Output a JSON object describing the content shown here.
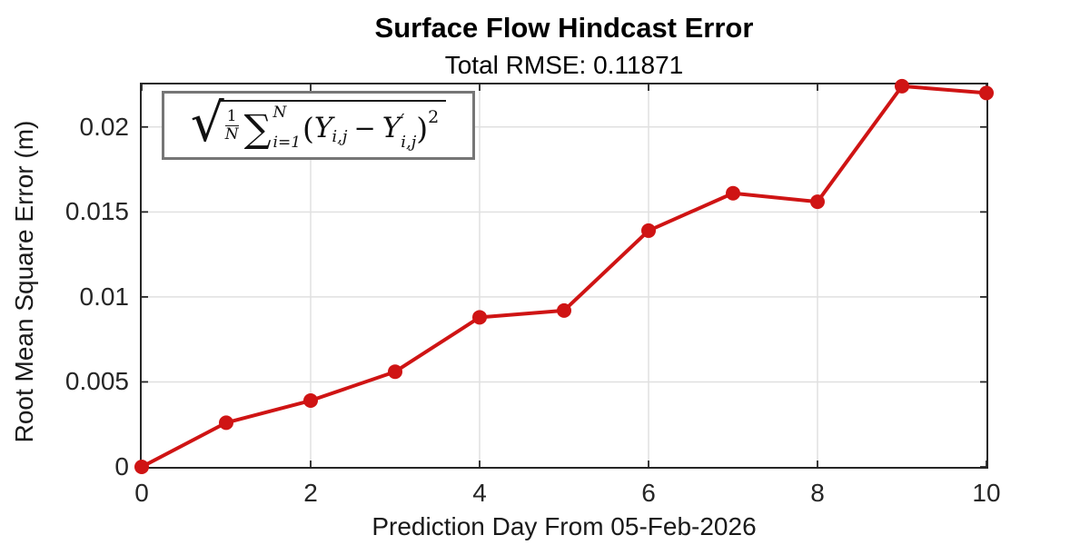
{
  "chart_data": {
    "type": "line",
    "title": "Surface Flow Hindcast Error",
    "subtitle": "Total RMSE: 0.11871",
    "xlabel": "Prediction Day From 05-Feb-2026",
    "ylabel": "Root Mean Square Error (m)",
    "x": [
      0,
      1,
      2,
      3,
      4,
      5,
      6,
      7,
      8,
      9,
      10
    ],
    "y": [
      0.0,
      0.0026,
      0.0039,
      0.0056,
      0.0088,
      0.0092,
      0.0139,
      0.0161,
      0.0156,
      0.0224,
      0.022
    ],
    "xlim": [
      0,
      10
    ],
    "ylim": [
      0,
      0.0225
    ],
    "x_ticks": [
      0,
      2,
      4,
      6,
      8,
      10
    ],
    "x_tick_labels": [
      "0",
      "2",
      "4",
      "6",
      "8",
      "10"
    ],
    "y_ticks": [
      0,
      0.005,
      0.01,
      0.015,
      0.02
    ],
    "y_tick_labels": [
      "0",
      "0.005",
      "0.01",
      "0.015",
      "0.02"
    ],
    "grid": true,
    "legend_position": "none",
    "line_color": "#cf1414",
    "marker": "filled-circle",
    "annotation": "sqrt((1/N) * sum_{i=1}^{N} (Y_ij - Y'_ij)^2)"
  },
  "formula": {
    "radical": "√",
    "frac_num": "1",
    "frac_den": "N",
    "sum_symbol": "∑",
    "sum_upper": "N",
    "sum_lower": "i=1",
    "open_paren": "(",
    "y1": "Y",
    "sub1": "i,j",
    "minus": "−",
    "y2": "Y",
    "prime": "′",
    "sub2": "i,j",
    "close_paren": ")",
    "exponent": "2"
  },
  "colors": {
    "axis": "#262626",
    "grid": "#e0e0e0",
    "line": "#cf1414",
    "formula_border": "#767676"
  }
}
